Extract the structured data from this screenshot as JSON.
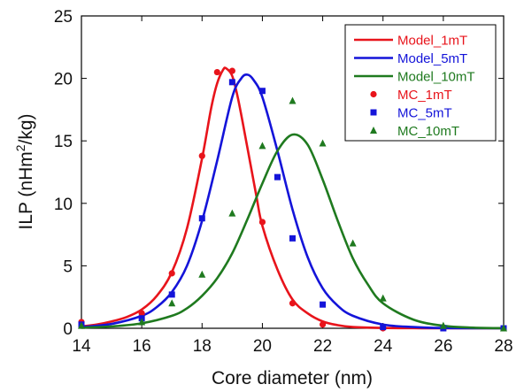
{
  "chart_data": {
    "type": "line",
    "xlabel": "Core diameter (nm)",
    "ylabel_parts": [
      "ILP (nHm",
      "2",
      "/kg)"
    ],
    "xlim": [
      14,
      28
    ],
    "ylim": [
      0,
      25
    ],
    "xticks": [
      "14",
      "16",
      "18",
      "20",
      "22",
      "24",
      "26",
      "28"
    ],
    "yticks": [
      "0",
      "5",
      "10",
      "15",
      "20",
      "25"
    ],
    "xtick_values": [
      14,
      16,
      18,
      20,
      22,
      24,
      26,
      28
    ],
    "ytick_values": [
      0,
      5,
      10,
      15,
      20,
      25
    ],
    "grid": false,
    "legend_position": "top-right",
    "series": [
      {
        "name": "Model_1mT",
        "kind": "line",
        "color": "#e8141b",
        "x": [
          14,
          14.5,
          15,
          15.5,
          16,
          16.5,
          17,
          17.5,
          18,
          18.3,
          18.5,
          18.7,
          18.8,
          19.0,
          19.2,
          19.5,
          19.8,
          20,
          20.5,
          21,
          21.5,
          22,
          22.5,
          23,
          24,
          25,
          26,
          28
        ],
        "y": [
          0.15,
          0.3,
          0.55,
          0.9,
          1.5,
          2.6,
          4.5,
          8.0,
          13.6,
          17.6,
          19.6,
          20.7,
          20.8,
          20.2,
          18.3,
          14.5,
          10.6,
          8.2,
          4.7,
          2.3,
          1.2,
          0.55,
          0.25,
          0.1,
          0.03,
          0.01,
          0.0,
          0.0
        ]
      },
      {
        "name": "Model_5mT",
        "kind": "line",
        "color": "#1414d9",
        "x": [
          14,
          15,
          16,
          16.5,
          17,
          17.5,
          18,
          18.5,
          19,
          19.3,
          19.5,
          19.7,
          20,
          20.5,
          21,
          21.5,
          22,
          22.5,
          23,
          24,
          25,
          26,
          28
        ],
        "y": [
          0.1,
          0.35,
          1.0,
          1.7,
          2.9,
          5.0,
          8.6,
          13.4,
          18.5,
          20.0,
          20.3,
          19.9,
          18.5,
          14.2,
          9.5,
          5.7,
          3.2,
          1.8,
          1.0,
          0.3,
          0.1,
          0.02,
          0.0
        ]
      },
      {
        "name": "Model_10mT",
        "kind": "line",
        "color": "#1f7a1f",
        "x": [
          14,
          15,
          16,
          17,
          17.5,
          18,
          18.5,
          19,
          19.5,
          20,
          20.5,
          21,
          21.5,
          22,
          22.5,
          23,
          23.5,
          24,
          25,
          26,
          27,
          28
        ],
        "y": [
          0.05,
          0.15,
          0.4,
          1.0,
          1.6,
          2.6,
          4.0,
          6.0,
          8.7,
          11.6,
          14.2,
          15.5,
          14.7,
          11.9,
          8.6,
          5.6,
          3.5,
          2.0,
          0.7,
          0.2,
          0.05,
          0.01
        ]
      },
      {
        "name": "MC_1mT",
        "kind": "marker",
        "marker": "circle",
        "color": "#e8141b",
        "x": [
          14,
          16,
          17,
          18,
          18.5,
          19,
          20,
          21,
          22,
          24
        ],
        "y": [
          0.5,
          1.2,
          4.4,
          13.8,
          20.5,
          20.6,
          8.5,
          2.0,
          0.3,
          0.0
        ]
      },
      {
        "name": "MC_5mT",
        "kind": "marker",
        "marker": "square",
        "color": "#1414d9",
        "x": [
          14,
          16,
          17,
          18,
          19,
          20,
          20.5,
          21,
          22,
          24,
          26,
          28
        ],
        "y": [
          0.3,
          0.8,
          2.7,
          8.8,
          19.7,
          19.0,
          12.1,
          7.2,
          1.9,
          0.1,
          0.0,
          0.0
        ]
      },
      {
        "name": "MC_10mT",
        "kind": "marker",
        "marker": "triangle",
        "color": "#1f7a1f",
        "x": [
          14,
          16,
          17,
          18,
          19,
          20,
          21,
          22,
          23,
          24,
          26,
          28
        ],
        "y": [
          0.2,
          0.5,
          2.0,
          4.3,
          9.2,
          14.6,
          18.2,
          14.8,
          6.8,
          2.4,
          0.2,
          0.0
        ]
      }
    ]
  }
}
